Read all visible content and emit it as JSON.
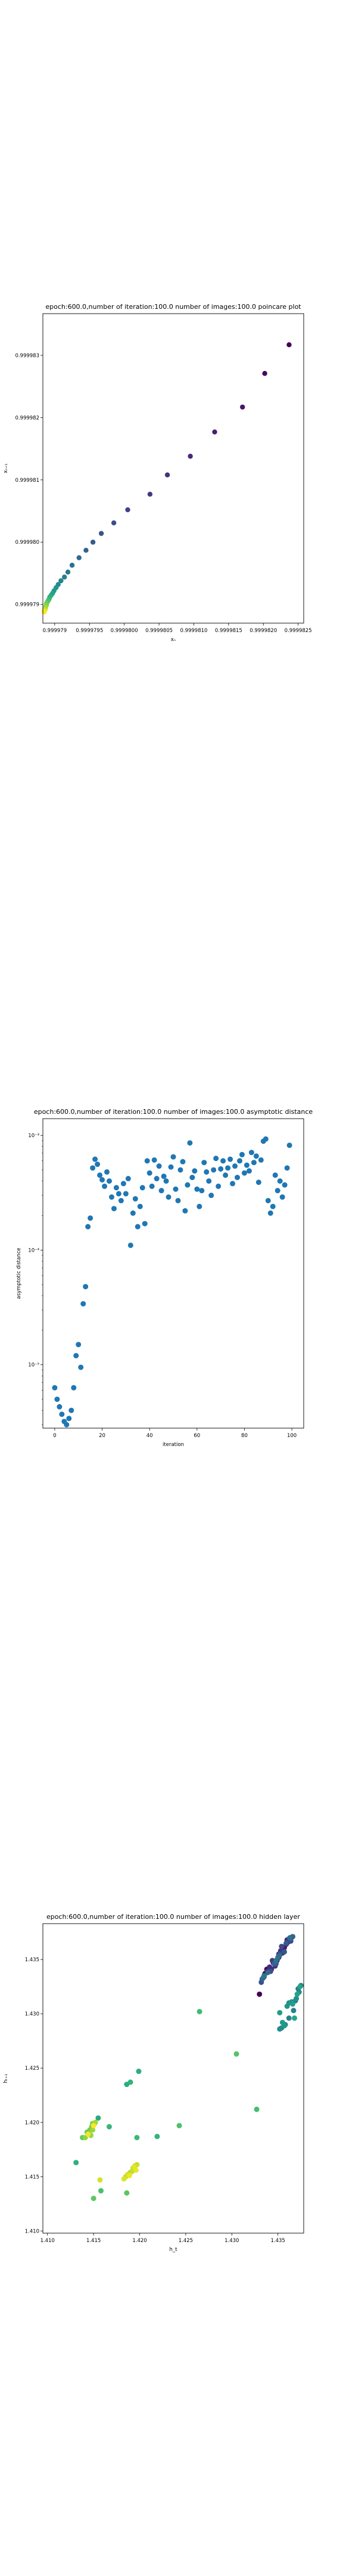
{
  "chart_data": [
    {
      "type": "scatter",
      "title": "epoch:600.0,number of iteration:100.0 number of images:100.0 poincare plot",
      "xlabel": "xₙ",
      "ylabel": "xₙ₊₁",
      "xlim": [
        0.99997883,
        0.99998258
      ],
      "ylim": [
        0.9999787,
        0.99998367
      ],
      "xticks": [
        0.999979,
        0.9999795,
        0.99998,
        0.9999805,
        0.999981,
        0.9999815,
        0.999982,
        0.9999825
      ],
      "xtick_labels": [
        "0.999979",
        "0.9999795",
        "0.9999800",
        "0.9999805",
        "0.9999810",
        "0.9999815",
        "0.9999820",
        "0.9999825"
      ],
      "yticks": [
        0.999979,
        0.99998,
        0.999981,
        0.999982,
        0.999983
      ],
      "ytick_labels": [
        "0.999979",
        "0.999980",
        "0.999981",
        "0.999982",
        "0.999983"
      ],
      "colormap": "viridis",
      "points": [
        [
          0.99998237,
          0.99998317
        ],
        [
          0.99998202,
          0.99998271
        ],
        [
          0.9999817,
          0.99998217
        ],
        [
          0.9999813,
          0.99998177
        ],
        [
          0.99998095,
          0.99998138
        ],
        [
          0.99998062,
          0.99998108
        ],
        [
          0.99998037,
          0.99998077
        ],
        [
          0.99998005,
          0.99998052
        ],
        [
          0.99997985,
          0.99998031
        ],
        [
          0.99997967,
          0.99998014
        ],
        [
          0.99997955,
          0.99998
        ],
        [
          0.99997945,
          0.99997987
        ],
        [
          0.99997935,
          0.99997975
        ],
        [
          0.99997925,
          0.99997963
        ],
        [
          0.99997919,
          0.99997952
        ],
        [
          0.99997914,
          0.99997944
        ],
        [
          0.99997909,
          0.99997938
        ],
        [
          0.99997905,
          0.99997932
        ],
        [
          0.99997902,
          0.99997927
        ],
        [
          0.99997899,
          0.99997922
        ],
        [
          0.99997897,
          0.99997918
        ],
        [
          0.99997895,
          0.99997915
        ],
        [
          0.99997893,
          0.99997912
        ],
        [
          0.99997892,
          0.99997909
        ],
        [
          0.99997891,
          0.99997907
        ],
        [
          0.9999789,
          0.99997905
        ],
        [
          0.99997889,
          0.99997903
        ],
        [
          0.99997888,
          0.99997901
        ],
        [
          0.99997888,
          0.99997899
        ],
        [
          0.99997887,
          0.99997897
        ],
        [
          0.99997887,
          0.99997895
        ],
        [
          0.99997886,
          0.99997893
        ],
        [
          0.99997886,
          0.99997891
        ],
        [
          0.99997885,
          0.9999789
        ],
        [
          0.99997885,
          0.99997889
        ],
        [
          0.99997885,
          0.99997888
        ]
      ]
    },
    {
      "type": "scatter",
      "title": "epoch:600.0,number of iteration:100.0  number of images:100.0 asymptotic distance",
      "xlabel": "iteration",
      "ylabel": "asymptotic distance",
      "xlim": [
        -5,
        105
      ],
      "yscale": "log",
      "ylim": [
        2.8e-06,
        0.0014
      ],
      "xticks": [
        0,
        20,
        40,
        60,
        80,
        100
      ],
      "xtick_labels": [
        "0",
        "20",
        "40",
        "60",
        "80",
        "100"
      ],
      "yticks": [
        1e-05,
        0.0001,
        0.001
      ],
      "ytick_labels": [
        "10⁻⁵",
        "10⁻⁴",
        "10⁻³"
      ],
      "color": "#1f77b4",
      "x": [
        0,
        1,
        2,
        3,
        4,
        5,
        6,
        7,
        8,
        9,
        10,
        11,
        12,
        13,
        14,
        15,
        16,
        17,
        18,
        19,
        20,
        21,
        22,
        23,
        24,
        25,
        26,
        27,
        28,
        29,
        30,
        31,
        32,
        33,
        34,
        35,
        36,
        37,
        38,
        39,
        40,
        41,
        42,
        43,
        44,
        45,
        46,
        47,
        48,
        49,
        50,
        51,
        52,
        53,
        54,
        55,
        56,
        57,
        58,
        59,
        60,
        61,
        62,
        63,
        64,
        65,
        66,
        67,
        68,
        69,
        70,
        71,
        72,
        73,
        74,
        75,
        76,
        77,
        78,
        79,
        80,
        81,
        82,
        83,
        84,
        85,
        86,
        87,
        88,
        89,
        90,
        91,
        92,
        93,
        94,
        95,
        96,
        97,
        98,
        99
      ],
      "y": [
        6.3e-06,
        5e-06,
        4.3e-06,
        3.7e-06,
        3.2e-06,
        3e-06,
        3.4e-06,
        4e-06,
        6.3e-06,
        1.2e-05,
        1.5e-05,
        9.5e-06,
        3.4e-05,
        4.8e-05,
        0.00016,
        0.00019,
        0.00052,
        0.00062,
        0.00056,
        0.00045,
        0.00041,
        0.00036,
        0.00048,
        0.0004,
        0.00029,
        0.00023,
        0.00035,
        0.00031,
        0.00027,
        0.00038,
        0.00031,
        0.00042,
        0.00011,
        0.00021,
        0.00028,
        0.00016,
        0.00024,
        0.00035,
        0.00017,
        0.0006,
        0.00047,
        0.00036,
        0.00061,
        0.00042,
        0.00054,
        0.00033,
        0.00044,
        0.0004,
        0.00029,
        0.00053,
        0.00065,
        0.00034,
        0.00027,
        0.0005,
        0.00059,
        0.00022,
        0.00037,
        0.00086,
        0.00043,
        0.00049,
        0.00034,
        0.00024,
        0.00033,
        0.00058,
        0.00048,
        0.0004,
        0.0003,
        0.0005,
        0.00063,
        0.00036,
        0.00051,
        0.0006,
        0.00045,
        0.00052,
        0.00062,
        0.00038,
        0.00054,
        0.00043,
        0.0006,
        0.00068,
        0.00047,
        0.00055,
        0.00049,
        0.00071,
        0.00058,
        0.00066,
        0.00039,
        0.00061,
        0.00089,
        0.00093,
        0.00027,
        0.00021,
        0.00024,
        0.00045,
        0.00033,
        0.0004,
        0.00029,
        0.00037,
        0.00052,
        0.00082
      ]
    },
    {
      "type": "scatter",
      "title": "epoch:600.0,number of iteration:100.0  number of images:100.0 hidden layer",
      "xlabel": "h_t",
      "ylabel": "hₜ₊₁",
      "xlim": [
        1.4095,
        1.4378
      ],
      "ylim": [
        1.4098,
        1.4383
      ],
      "xticks": [
        1.41,
        1.415,
        1.42,
        1.425,
        1.43,
        1.435
      ],
      "xtick_labels": [
        "1.410",
        "1.415",
        "1.420",
        "1.425",
        "1.430",
        "1.435"
      ],
      "yticks": [
        1.41,
        1.415,
        1.42,
        1.425,
        1.43,
        1.435
      ],
      "ytick_labels": [
        "1.410",
        "1.415",
        "1.420",
        "1.425",
        "1.430",
        "1.435"
      ],
      "colormap": "viridis",
      "points": [
        [
          1.433,
          1.4318
        ],
        [
          1.4336,
          1.4337
        ],
        [
          1.4338,
          1.4341
        ],
        [
          1.4345,
          1.4347
        ],
        [
          1.4351,
          1.4352
        ],
        [
          1.4355,
          1.4356
        ],
        [
          1.4349,
          1.4349
        ],
        [
          1.4357,
          1.4361
        ],
        [
          1.4359,
          1.4364
        ],
        [
          1.436,
          1.4368
        ],
        [
          1.4361,
          1.4366
        ],
        [
          1.4341,
          1.4343
        ],
        [
          1.4343,
          1.4341
        ],
        [
          1.4347,
          1.4344
        ],
        [
          1.4364,
          1.437
        ],
        [
          1.4366,
          1.4371
        ],
        [
          1.4353,
          1.4358
        ],
        [
          1.4339,
          1.4339
        ],
        [
          1.4344,
          1.4349
        ],
        [
          1.4351,
          1.4355
        ],
        [
          1.4362,
          1.4369
        ],
        [
          1.4364,
          1.4367
        ],
        [
          1.4354,
          1.4362
        ],
        [
          1.4342,
          1.4339
        ],
        [
          1.4335,
          1.4334
        ],
        [
          1.4332,
          1.4329
        ],
        [
          1.4357,
          1.4357
        ],
        [
          1.4348,
          1.4346
        ],
        [
          1.4333,
          1.4332
        ],
        [
          1.4359,
          1.4365
        ],
        [
          1.4366,
          1.4371
        ],
        [
          1.4364,
          1.4369
        ],
        [
          1.4346,
          1.4346
        ],
        [
          1.4352,
          1.4354
        ],
        [
          1.4339,
          1.4338
        ],
        [
          1.4334,
          1.4333
        ],
        [
          1.4363,
          1.437
        ],
        [
          1.4348,
          1.4349
        ],
        [
          1.435,
          1.4352
        ],
        [
          1.4335,
          1.4335
        ],
        [
          1.4372,
          1.4323
        ],
        [
          1.4375,
          1.4326
        ],
        [
          1.4369,
          1.4312
        ],
        [
          1.4367,
          1.4303
        ],
        [
          1.4362,
          1.4296
        ],
        [
          1.4358,
          1.429
        ],
        [
          1.4354,
          1.4287
        ],
        [
          1.4352,
          1.4286
        ],
        [
          1.4373,
          1.432
        ],
        [
          1.437,
          1.4314
        ],
        [
          1.4362,
          1.431
        ],
        [
          1.4365,
          1.4311
        ],
        [
          1.436,
          1.4307
        ],
        [
          1.4357,
          1.4289
        ],
        [
          1.4355,
          1.4292
        ],
        [
          1.4352,
          1.4301
        ],
        [
          1.4366,
          1.4309
        ],
        [
          1.4371,
          1.4318
        ],
        [
          1.4374,
          1.4325
        ],
        [
          1.4368,
          1.4296
        ],
        [
          1.4155,
          1.4204
        ],
        [
          1.4186,
          1.4235
        ],
        [
          1.4199,
          1.4247
        ],
        [
          1.4131,
          1.4163
        ],
        [
          1.419,
          1.4237
        ],
        [
          1.4219,
          1.4187
        ],
        [
          1.4167,
          1.4196
        ],
        [
          1.4197,
          1.4186
        ],
        [
          1.4265,
          1.4302
        ],
        [
          1.4327,
          1.4212
        ],
        [
          1.4158,
          1.4137
        ],
        [
          1.4243,
          1.4197
        ],
        [
          1.4305,
          1.4263
        ],
        [
          1.4186,
          1.4135
        ],
        [
          1.415,
          1.413
        ],
        [
          1.4138,
          1.4186
        ],
        [
          1.4143,
          1.4191
        ],
        [
          1.4146,
          1.4193
        ],
        [
          1.4148,
          1.4196
        ],
        [
          1.4149,
          1.4199
        ],
        [
          1.4151,
          1.4199
        ],
        [
          1.4145,
          1.419
        ],
        [
          1.4141,
          1.4186
        ],
        [
          1.4147,
          1.4188
        ],
        [
          1.4149,
          1.4193
        ],
        [
          1.4152,
          1.42
        ],
        [
          1.419,
          1.4154
        ],
        [
          1.4193,
          1.4158
        ],
        [
          1.4195,
          1.416
        ],
        [
          1.4185,
          1.415
        ],
        [
          1.4192,
          1.4155
        ],
        [
          1.4197,
          1.4161
        ],
        [
          1.4187,
          1.4152
        ],
        [
          1.4157,
          1.4147
        ],
        [
          1.4183,
          1.4148
        ],
        [
          1.4194,
          1.4159
        ],
        [
          1.4196,
          1.4156
        ],
        [
          1.4189,
          1.4151
        ],
        [
          1.4144,
          1.4189
        ],
        [
          1.415,
          1.4197
        ]
      ]
    }
  ]
}
